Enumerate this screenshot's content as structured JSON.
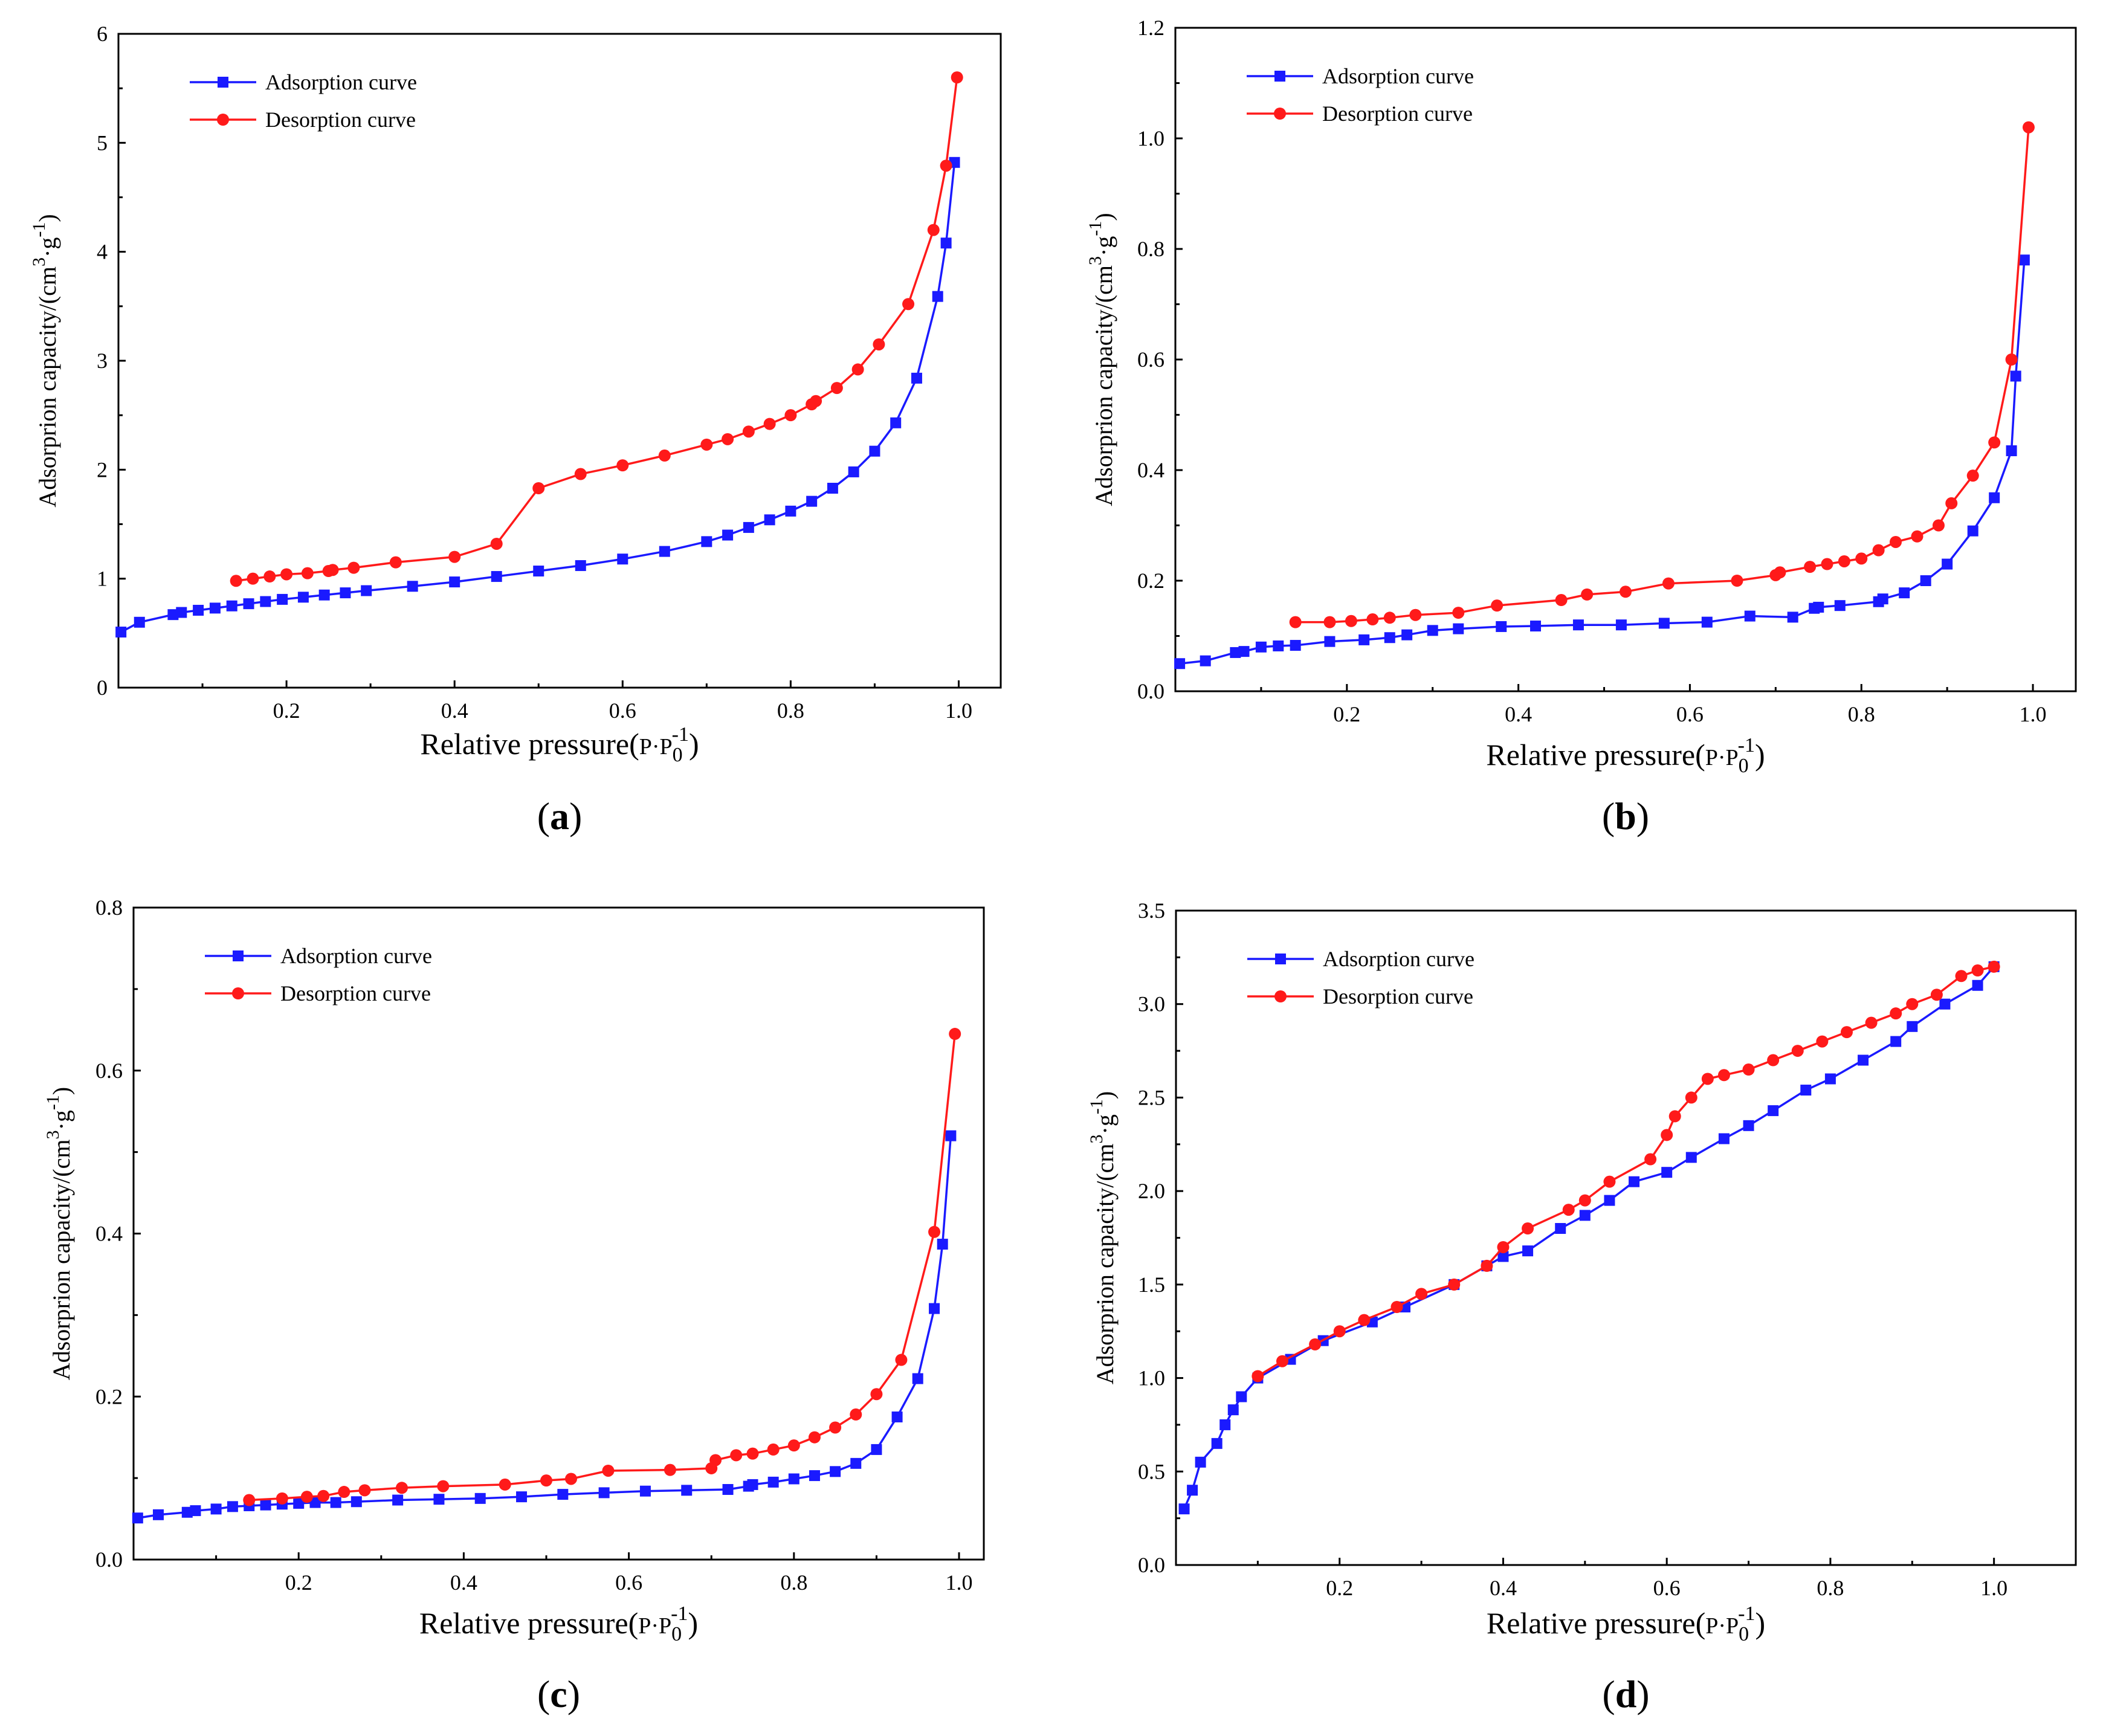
{
  "colors": {
    "adsorption": "#1a1aff",
    "desorption": "#ff1a1a"
  },
  "chart_data": [
    {
      "type": "line",
      "panel": "a",
      "panel_label": "(a)",
      "panel_letter": "a",
      "xlabel": "Relative pressure(P·P0-1)",
      "xlabel_main": "Relative pressure(",
      "xlabel_p": "P·P",
      "xlabel_sub": "0",
      "xlabel_sup": "-1",
      "xlabel_close": ")",
      "ylabel": "Adsorprion capacity/(cm3·g-1)",
      "ylabel_main": "Adsorprion capacity/(cm",
      "ylabel_sup1": "3",
      "ylabel_mid": "·g",
      "ylabel_sup2": "-1",
      "ylabel_close": ")",
      "xlim": [
        0.0,
        1.05
      ],
      "ylim": [
        0,
        6
      ],
      "xticks": [
        0.2,
        0.4,
        0.6,
        0.8,
        1.0
      ],
      "xtick_labels": [
        "0.2",
        "0.4",
        "0.6",
        "0.8",
        "1.0"
      ],
      "yticks": [
        0,
        1,
        2,
        3,
        4,
        5,
        6
      ],
      "ytick_labels": [
        "0",
        "1",
        "2",
        "3",
        "4",
        "5",
        "6"
      ],
      "legend": [
        "Adsorption curve",
        "Desorption curve"
      ],
      "legend_position": "top-left",
      "series": [
        {
          "name": "Adsorption curve",
          "x": [
            0.003,
            0.025,
            0.065,
            0.075,
            0.095,
            0.115,
            0.135,
            0.155,
            0.175,
            0.195,
            0.22,
            0.245,
            0.27,
            0.295,
            0.35,
            0.4,
            0.45,
            0.5,
            0.55,
            0.6,
            0.65,
            0.7,
            0.725,
            0.75,
            0.775,
            0.8,
            0.825,
            0.85,
            0.875,
            0.9,
            0.925,
            0.95,
            0.975,
            0.985,
            0.995
          ],
          "y": [
            0.51,
            0.6,
            0.67,
            0.69,
            0.71,
            0.73,
            0.75,
            0.77,
            0.79,
            0.81,
            0.83,
            0.85,
            0.87,
            0.89,
            0.93,
            0.97,
            1.02,
            1.07,
            1.12,
            1.18,
            1.25,
            1.34,
            1.4,
            1.47,
            1.54,
            1.62,
            1.71,
            1.83,
            1.98,
            2.17,
            2.43,
            2.84,
            3.59,
            4.08,
            4.82
          ]
        },
        {
          "name": "Desorption curve",
          "x": [
            0.14,
            0.16,
            0.18,
            0.2,
            0.225,
            0.25,
            0.255,
            0.28,
            0.33,
            0.4,
            0.45,
            0.5,
            0.55,
            0.6,
            0.65,
            0.7,
            0.725,
            0.75,
            0.775,
            0.8,
            0.825,
            0.83,
            0.855,
            0.88,
            0.905,
            0.94,
            0.97,
            0.985,
            0.998
          ],
          "y": [
            0.98,
            1.0,
            1.02,
            1.04,
            1.05,
            1.07,
            1.08,
            1.1,
            1.15,
            1.2,
            1.32,
            1.83,
            1.96,
            2.04,
            2.13,
            2.23,
            2.28,
            2.35,
            2.42,
            2.5,
            2.6,
            2.63,
            2.75,
            2.92,
            3.15,
            3.52,
            4.2,
            4.79,
            5.6
          ]
        }
      ]
    },
    {
      "type": "line",
      "panel": "b",
      "panel_label": "(b)",
      "panel_letter": "b",
      "xlabel": "Relative pressure(P·P0-1)",
      "xlabel_main": "Relative pressure(",
      "xlabel_p": "P·P",
      "xlabel_sub": "0",
      "xlabel_sup": "-1",
      "xlabel_close": ")",
      "ylabel": "Adsorprion capacity/(cm3·g-1)",
      "ylabel_main": "Adsorprion capacity/(cm",
      "ylabel_sup1": "3",
      "ylabel_mid": "·g",
      "ylabel_sup2": "-1",
      "ylabel_close": ")",
      "xlim": [
        0.0,
        1.05
      ],
      "ylim": [
        0.0,
        1.2
      ],
      "xticks": [
        0.2,
        0.4,
        0.6,
        0.8,
        1.0
      ],
      "xtick_labels": [
        "0.2",
        "0.4",
        "0.6",
        "0.8",
        "1.0"
      ],
      "yticks": [
        0.0,
        0.2,
        0.4,
        0.6,
        0.8,
        1.0,
        1.2
      ],
      "ytick_labels": [
        "0.0",
        "0.2",
        "0.4",
        "0.6",
        "0.8",
        "1.0",
        "1.2"
      ],
      "legend": [
        "Adsorption curve",
        "Desorption curve"
      ],
      "legend_position": "top-left",
      "series": [
        {
          "name": "Adsorption curve",
          "x": [
            0.005,
            0.035,
            0.07,
            0.08,
            0.1,
            0.12,
            0.14,
            0.18,
            0.22,
            0.25,
            0.27,
            0.3,
            0.33,
            0.38,
            0.42,
            0.47,
            0.52,
            0.57,
            0.62,
            0.67,
            0.72,
            0.745,
            0.75,
            0.775,
            0.82,
            0.825,
            0.85,
            0.875,
            0.9,
            0.93,
            0.955,
            0.975,
            0.98,
            0.99
          ],
          "y": [
            0.05,
            0.055,
            0.07,
            0.072,
            0.08,
            0.082,
            0.083,
            0.09,
            0.093,
            0.097,
            0.102,
            0.11,
            0.113,
            0.117,
            0.118,
            0.12,
            0.12,
            0.123,
            0.125,
            0.136,
            0.134,
            0.15,
            0.152,
            0.155,
            0.162,
            0.167,
            0.178,
            0.2,
            0.23,
            0.29,
            0.35,
            0.435,
            0.57,
            0.78
          ]
        },
        {
          "name": "Desorption curve",
          "x": [
            0.14,
            0.18,
            0.205,
            0.23,
            0.25,
            0.28,
            0.33,
            0.375,
            0.45,
            0.48,
            0.525,
            0.575,
            0.655,
            0.7,
            0.705,
            0.74,
            0.76,
            0.78,
            0.8,
            0.82,
            0.84,
            0.865,
            0.89,
            0.905,
            0.93,
            0.955,
            0.975,
            0.995
          ],
          "y": [
            0.125,
            0.125,
            0.127,
            0.13,
            0.133,
            0.138,
            0.142,
            0.155,
            0.165,
            0.175,
            0.18,
            0.195,
            0.2,
            0.21,
            0.215,
            0.225,
            0.23,
            0.235,
            0.24,
            0.255,
            0.27,
            0.28,
            0.3,
            0.34,
            0.39,
            0.45,
            0.6,
            1.02
          ]
        }
      ]
    },
    {
      "type": "line",
      "panel": "c",
      "panel_label": "(c)",
      "panel_letter": "c",
      "xlabel": "Relative pressure(P·P0-1)",
      "xlabel_main": "Relative pressure(",
      "xlabel_p": "P·P",
      "xlabel_sub": "0",
      "xlabel_sup": "-1",
      "xlabel_close": ")",
      "ylabel": "Adsorprion capacity/(cm3·g-1)",
      "ylabel_main": "Adsorprion capacity/(cm",
      "ylabel_sup1": "3",
      "ylabel_mid": "·g",
      "ylabel_sup2": "-1",
      "ylabel_close": ")",
      "xlim": [
        0.0,
        1.03
      ],
      "ylim": [
        0.0,
        0.8
      ],
      "xticks": [
        0.2,
        0.4,
        0.6,
        0.8,
        1.0
      ],
      "xtick_labels": [
        "0.2",
        "0.4",
        "0.6",
        "0.8",
        "1.0"
      ],
      "yticks": [
        0.0,
        0.2,
        0.4,
        0.6,
        0.8
      ],
      "ytick_labels": [
        "0.0",
        "0.2",
        "0.4",
        "0.6",
        "0.8"
      ],
      "legend": [
        "Adsorption curve",
        "Desorption curve"
      ],
      "legend_position": "top-left",
      "series": [
        {
          "name": "Adsorption curve",
          "x": [
            0.005,
            0.03,
            0.065,
            0.075,
            0.1,
            0.12,
            0.14,
            0.16,
            0.18,
            0.2,
            0.22,
            0.245,
            0.27,
            0.32,
            0.37,
            0.42,
            0.47,
            0.52,
            0.57,
            0.62,
            0.67,
            0.72,
            0.745,
            0.75,
            0.775,
            0.8,
            0.825,
            0.85,
            0.875,
            0.9,
            0.925,
            0.95,
            0.97,
            0.98,
            0.99
          ],
          "y": [
            0.051,
            0.055,
            0.058,
            0.06,
            0.062,
            0.065,
            0.066,
            0.067,
            0.068,
            0.069,
            0.07,
            0.07,
            0.071,
            0.073,
            0.074,
            0.075,
            0.077,
            0.08,
            0.082,
            0.084,
            0.085,
            0.086,
            0.09,
            0.092,
            0.095,
            0.099,
            0.103,
            0.108,
            0.118,
            0.135,
            0.175,
            0.222,
            0.308,
            0.387,
            0.52
          ]
        },
        {
          "name": "Desorption curve",
          "x": [
            0.14,
            0.18,
            0.21,
            0.23,
            0.255,
            0.28,
            0.325,
            0.375,
            0.45,
            0.5,
            0.53,
            0.575,
            0.65,
            0.7,
            0.705,
            0.73,
            0.75,
            0.775,
            0.8,
            0.825,
            0.85,
            0.875,
            0.9,
            0.93,
            0.97,
            0.995
          ],
          "y": [
            0.073,
            0.075,
            0.077,
            0.078,
            0.083,
            0.085,
            0.088,
            0.09,
            0.092,
            0.097,
            0.099,
            0.109,
            0.11,
            0.112,
            0.122,
            0.128,
            0.13,
            0.135,
            0.14,
            0.15,
            0.162,
            0.178,
            0.203,
            0.245,
            0.402,
            0.645
          ]
        }
      ]
    },
    {
      "type": "line",
      "panel": "d",
      "panel_label": "(d)",
      "panel_letter": "d",
      "xlabel": "Relative pressure(P·P0-1)",
      "xlabel_main": "Relative pressure(",
      "xlabel_p": "P·P",
      "xlabel_sub": "0",
      "xlabel_sup": "-1",
      "xlabel_close": ")",
      "ylabel": "Adsorprion capacity/(cm3·g-1)",
      "ylabel_main": "Adsorprion capacity/(cm",
      "ylabel_sup1": "3",
      "ylabel_mid": "·g",
      "ylabel_sup2": "-1",
      "ylabel_close": ")",
      "xlim": [
        0.0,
        1.1
      ],
      "ylim": [
        0.0,
        3.5
      ],
      "xticks": [
        0.2,
        0.4,
        0.6,
        0.8,
        1.0
      ],
      "xtick_labels": [
        "0.2",
        "0.4",
        "0.6",
        "0.8",
        "1.0"
      ],
      "yticks": [
        0.0,
        0.5,
        1.0,
        1.5,
        2.0,
        2.5,
        3.0,
        3.5
      ],
      "ytick_labels": [
        "0.0",
        "0.5",
        "1.0",
        "1.5",
        "2.0",
        "2.5",
        "3.0",
        "3.5"
      ],
      "legend": [
        "Adsorption curve",
        "Desorption curve"
      ],
      "legend_position": "top-left",
      "series": [
        {
          "name": "Adsorption curve",
          "x": [
            0.01,
            0.02,
            0.03,
            0.05,
            0.06,
            0.07,
            0.08,
            0.1,
            0.14,
            0.18,
            0.24,
            0.28,
            0.34,
            0.38,
            0.4,
            0.43,
            0.47,
            0.5,
            0.53,
            0.56,
            0.6,
            0.63,
            0.67,
            0.7,
            0.73,
            0.77,
            0.8,
            0.84,
            0.88,
            0.9,
            0.94,
            0.98,
            1.0
          ],
          "y": [
            0.3,
            0.4,
            0.55,
            0.65,
            0.75,
            0.83,
            0.9,
            1.0,
            1.1,
            1.2,
            1.3,
            1.38,
            1.5,
            1.6,
            1.65,
            1.68,
            1.8,
            1.87,
            1.95,
            2.05,
            2.1,
            2.18,
            2.28,
            2.35,
            2.43,
            2.54,
            2.6,
            2.7,
            2.8,
            2.88,
            3.0,
            3.1,
            3.2
          ]
        },
        {
          "name": "Desorption curve",
          "x": [
            0.1,
            0.13,
            0.17,
            0.2,
            0.23,
            0.27,
            0.3,
            0.34,
            0.38,
            0.4,
            0.43,
            0.48,
            0.5,
            0.53,
            0.58,
            0.6,
            0.61,
            0.63,
            0.65,
            0.67,
            0.7,
            0.73,
            0.76,
            0.79,
            0.82,
            0.85,
            0.88,
            0.9,
            0.93,
            0.96,
            0.98,
            1.0
          ],
          "y": [
            1.01,
            1.09,
            1.18,
            1.25,
            1.31,
            1.38,
            1.45,
            1.5,
            1.6,
            1.7,
            1.8,
            1.9,
            1.95,
            2.05,
            2.17,
            2.3,
            2.4,
            2.5,
            2.6,
            2.62,
            2.65,
            2.7,
            2.75,
            2.8,
            2.85,
            2.9,
            2.95,
            3.0,
            3.05,
            3.15,
            3.18,
            3.2
          ]
        }
      ]
    }
  ]
}
